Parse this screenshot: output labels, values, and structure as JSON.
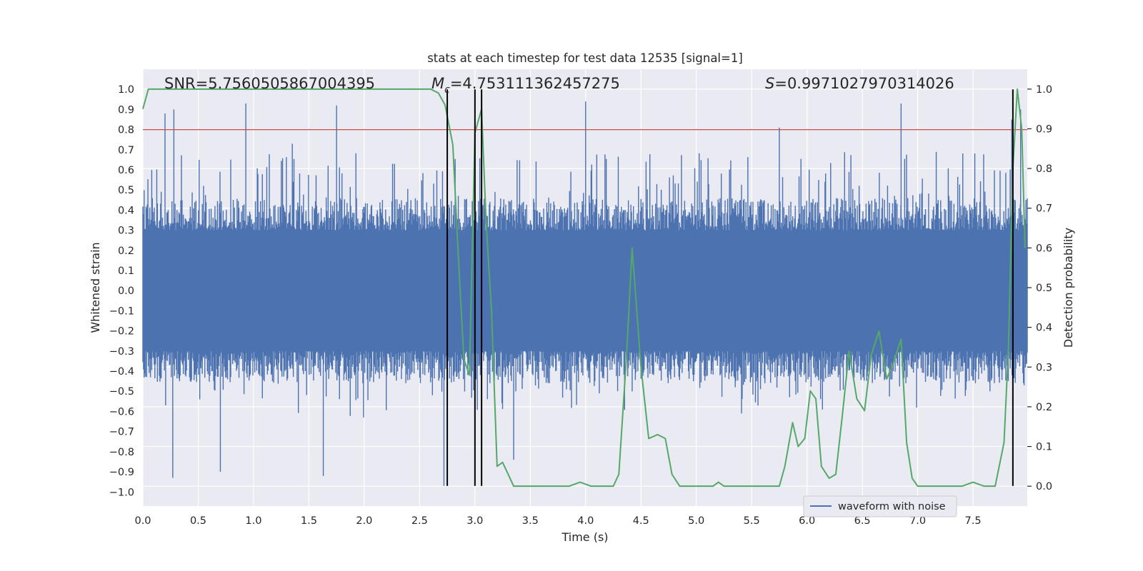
{
  "chart_data": {
    "type": "line",
    "title": "stats at each timestep for test data 12535 [signal=1]",
    "xlabel": "Time (s)",
    "ylabel": "Whitened strain",
    "ylabel_right": "Detection probability",
    "xlim": [
      0.0,
      7.99
    ],
    "ylim": [
      -1.07,
      1.1
    ],
    "ylim_right": [
      -0.05,
      1.05
    ],
    "x_ticks": [
      0.0,
      0.5,
      1.0,
      1.5,
      2.0,
      2.5,
      3.0,
      3.5,
      4.0,
      4.5,
      5.0,
      5.5,
      6.0,
      6.5,
      7.0,
      7.5
    ],
    "x_tick_labels": [
      "0.0",
      "0.5",
      "1.0",
      "1.5",
      "2.0",
      "2.5",
      "3.0",
      "3.5",
      "4.0",
      "4.5",
      "5.0",
      "5.5",
      "6.0",
      "6.5",
      "7.0",
      "7.5"
    ],
    "y_ticks": [
      -1.0,
      -0.9,
      -0.8,
      -0.7,
      -0.6,
      -0.5,
      -0.4,
      -0.3,
      -0.2,
      -0.1,
      0.0,
      0.1,
      0.2,
      0.3,
      0.4,
      0.5,
      0.6,
      0.7,
      0.8,
      0.9,
      1.0
    ],
    "y_tick_labels": [
      "−1.0",
      "−0.9",
      "−0.8",
      "−0.7",
      "−0.6",
      "−0.5",
      "−0.4",
      "−0.3",
      "−0.2",
      "−0.1",
      "0.0",
      "0.1",
      "0.2",
      "0.3",
      "0.4",
      "0.5",
      "0.6",
      "0.7",
      "0.8",
      "0.9",
      "1.0"
    ],
    "y_right_ticks": [
      0.0,
      0.1,
      0.2,
      0.3,
      0.4,
      0.5,
      0.6,
      0.7,
      0.8,
      0.9,
      1.0
    ],
    "y_right_tick_labels": [
      "0.0",
      "0.1",
      "0.2",
      "0.3",
      "0.4",
      "0.5",
      "0.6",
      "0.7",
      "0.8",
      "0.9",
      "1.0"
    ],
    "annotations": {
      "snr": "SNR=5.7560505867004395",
      "mc_symbol": "M",
      "mc_sub": "c",
      "mc_value": "=4.753111362457275",
      "s_symbol": "S",
      "s_value": "=0.9971027970314026"
    },
    "threshold": {
      "value": 0.8,
      "color": "#c44e52"
    },
    "vertical_lines": {
      "x": [
        2.75,
        3.0,
        3.06,
        7.86
      ],
      "y_range": [
        -0.97,
        1.0
      ],
      "color": "#000000"
    },
    "waveform": {
      "name": "waveform with noise",
      "color": "#4c72b0",
      "x_range": [
        0.0,
        7.99
      ],
      "samples": 1400,
      "band_amplitude": 0.3,
      "max_value": 0.94,
      "min_value": -0.97,
      "spikes": [
        {
          "x": 0.2,
          "y": 0.88
        },
        {
          "x": 0.28,
          "y": 0.9
        },
        {
          "x": 0.27,
          "y": -0.93
        },
        {
          "x": 0.08,
          "y": 0.6
        },
        {
          "x": 0.7,
          "y": -0.9
        },
        {
          "x": 0.93,
          "y": 0.93
        },
        {
          "x": 1.35,
          "y": 0.73
        },
        {
          "x": 1.75,
          "y": 0.92
        },
        {
          "x": 1.63,
          "y": -0.92
        },
        {
          "x": 2.72,
          "y": -0.97
        },
        {
          "x": 3.35,
          "y": -0.84
        },
        {
          "x": 4.0,
          "y": 0.94
        },
        {
          "x": 5.75,
          "y": 0.81
        },
        {
          "x": 6.85,
          "y": 0.93
        },
        {
          "x": 7.85,
          "y": 0.85
        },
        {
          "x": 7.93,
          "y": 0.9
        }
      ]
    },
    "detection_probability": {
      "color": "#55a868",
      "x": [
        0.0,
        0.05,
        0.1,
        2.6,
        2.67,
        2.73,
        2.8,
        2.85,
        2.9,
        2.95,
        3.0,
        3.06,
        3.1,
        3.15,
        3.2,
        3.25,
        3.35,
        3.45,
        3.55,
        3.65,
        3.75,
        3.85,
        3.95,
        4.05,
        4.15,
        4.25,
        4.3,
        4.37,
        4.42,
        4.5,
        4.57,
        4.65,
        4.72,
        4.78,
        4.85,
        4.95,
        5.05,
        5.15,
        5.2,
        5.25,
        5.35,
        5.45,
        5.55,
        5.65,
        5.75,
        5.8,
        5.87,
        5.92,
        5.98,
        6.03,
        6.08,
        6.13,
        6.2,
        6.26,
        6.32,
        6.38,
        6.45,
        6.52,
        6.58,
        6.65,
        6.72,
        6.78,
        6.85,
        6.9,
        6.95,
        7.0,
        7.07,
        7.13,
        7.2,
        7.3,
        7.4,
        7.5,
        7.6,
        7.65,
        7.7,
        7.78,
        7.82,
        7.86,
        7.9,
        7.94,
        7.97
      ],
      "y": [
        0.95,
        1.0,
        1.0,
        1.0,
        0.99,
        0.96,
        0.86,
        0.58,
        0.32,
        0.28,
        0.89,
        0.95,
        0.67,
        0.44,
        0.05,
        0.06,
        0.0,
        0.0,
        0.0,
        0.0,
        0.0,
        0.0,
        0.01,
        0.0,
        0.0,
        0.0,
        0.03,
        0.33,
        0.6,
        0.3,
        0.12,
        0.13,
        0.12,
        0.03,
        0.0,
        0.0,
        0.0,
        0.0,
        0.01,
        0.0,
        0.0,
        0.0,
        0.0,
        0.0,
        0.0,
        0.05,
        0.16,
        0.1,
        0.12,
        0.24,
        0.22,
        0.05,
        0.02,
        0.03,
        0.18,
        0.34,
        0.22,
        0.19,
        0.33,
        0.39,
        0.27,
        0.31,
        0.37,
        0.11,
        0.02,
        0.0,
        0.0,
        0.0,
        0.0,
        0.0,
        0.0,
        0.01,
        0.0,
        0.0,
        0.0,
        0.11,
        0.35,
        0.8,
        1.0,
        0.9,
        0.6
      ]
    },
    "legend": {
      "position": "lower-right",
      "entries": [
        "waveform with noise"
      ]
    },
    "grid": true,
    "colors": {
      "background": "#eaeaf2",
      "grid": "#ffffff"
    }
  }
}
